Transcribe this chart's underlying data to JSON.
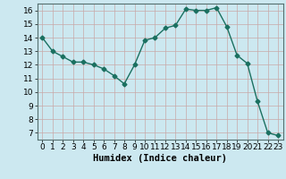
{
  "x": [
    0,
    1,
    2,
    3,
    4,
    5,
    6,
    7,
    8,
    9,
    10,
    11,
    12,
    13,
    14,
    15,
    16,
    17,
    18,
    19,
    20,
    21,
    22,
    23
  ],
  "y": [
    14.0,
    13.0,
    12.6,
    12.2,
    12.2,
    12.0,
    11.7,
    11.2,
    10.6,
    12.0,
    13.8,
    14.0,
    14.7,
    14.9,
    16.1,
    16.0,
    16.0,
    16.2,
    14.8,
    12.7,
    12.1,
    9.3,
    7.0,
    6.8
  ],
  "line_color": "#1a7060",
  "marker": "D",
  "marker_size": 2.5,
  "bg_color": "#cce8f0",
  "grid_color": "#c8a8a8",
  "xlabel": "Humidex (Indice chaleur)",
  "ylim": [
    6.5,
    16.5
  ],
  "xlim": [
    -0.5,
    23.5
  ],
  "yticks": [
    7,
    8,
    9,
    10,
    11,
    12,
    13,
    14,
    15,
    16
  ],
  "xticks": [
    0,
    1,
    2,
    3,
    4,
    5,
    6,
    7,
    8,
    9,
    10,
    11,
    12,
    13,
    14,
    15,
    16,
    17,
    18,
    19,
    20,
    21,
    22,
    23
  ],
  "xlabel_fontsize": 7.5,
  "tick_fontsize": 6.5
}
